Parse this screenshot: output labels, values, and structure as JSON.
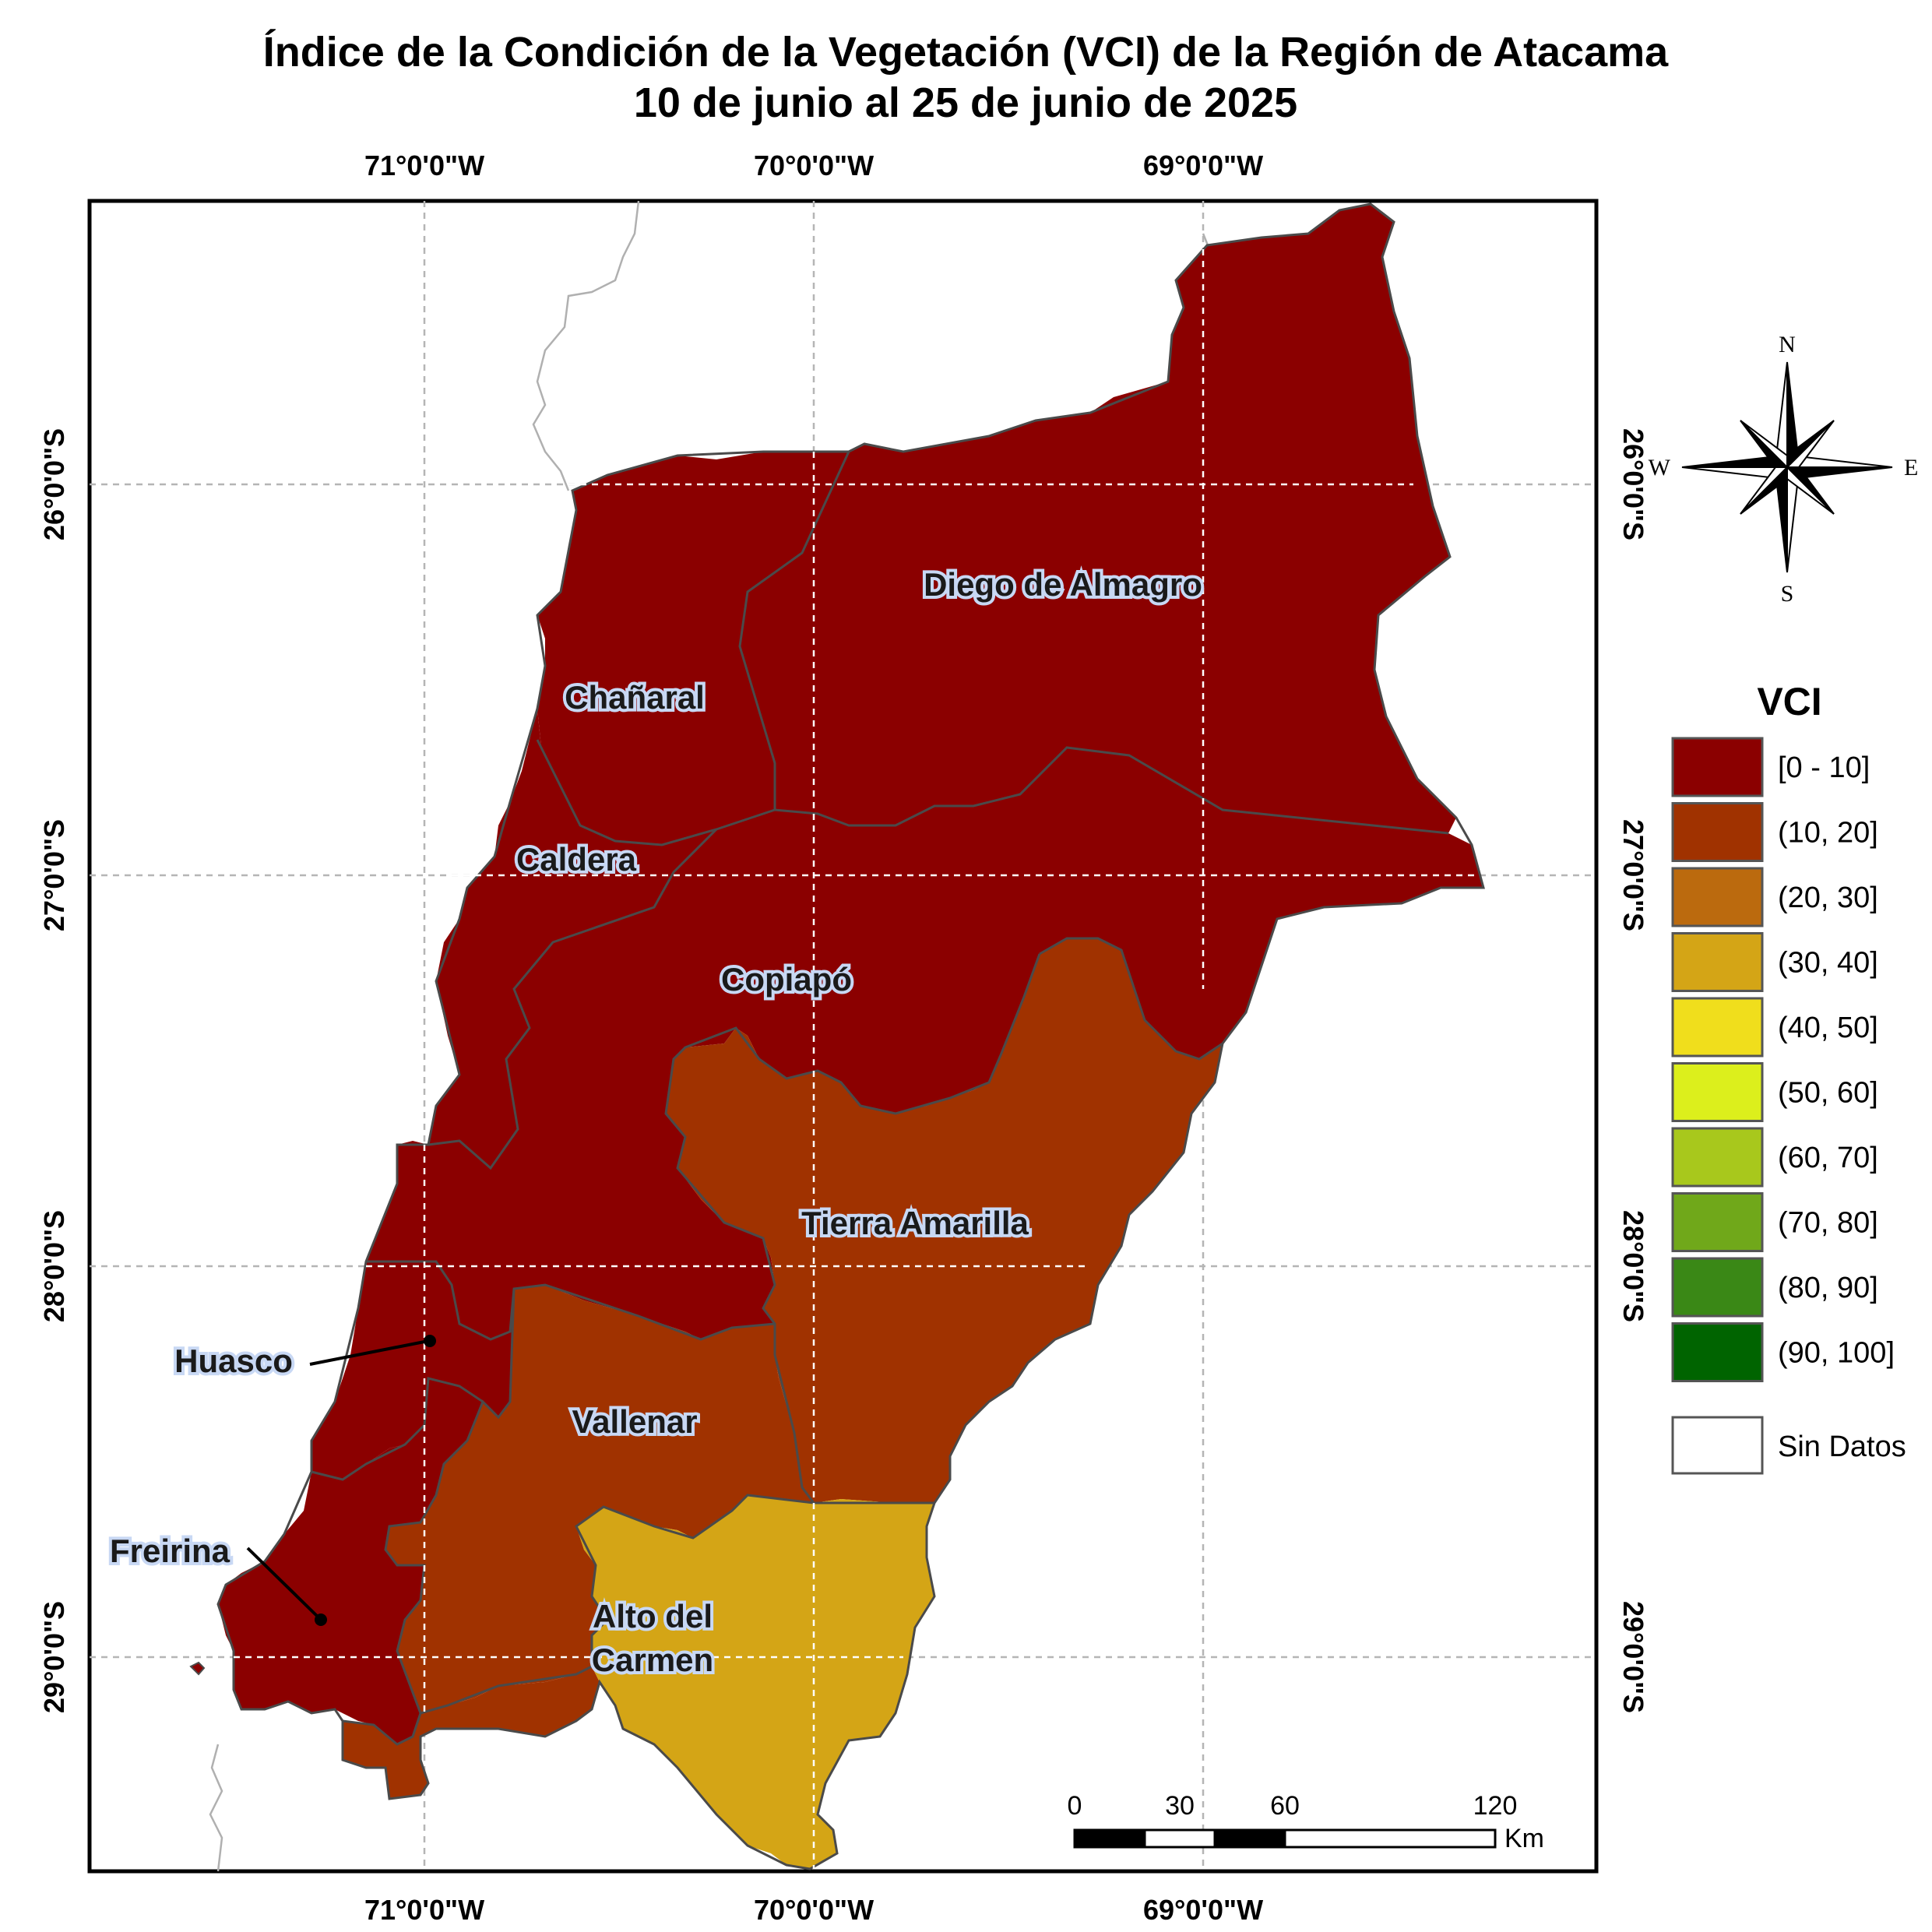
{
  "title": {
    "line1": "Índice de la Condición de la Vegetación (VCI) de la Región de Atacama",
    "line2": "10 de junio al 25 de junio de 2025"
  },
  "longitude_labels": [
    "71°0'0\"W",
    "70°0'0\"W",
    "69°0'0\"W"
  ],
  "latitude_labels": [
    "26°0'0\"S",
    "27°0'0\"S",
    "28°0'0\"S",
    "29°0'0\"S"
  ],
  "communes": [
    {
      "name": "Diego de Almagro",
      "vci_class": "[0 - 10]"
    },
    {
      "name": "Chañaral",
      "vci_class": "[0 - 10]"
    },
    {
      "name": "Caldera",
      "vci_class": "[0 - 10]"
    },
    {
      "name": "Copiapó",
      "vci_class": "[0 - 10]"
    },
    {
      "name": "Tierra Amarilla",
      "vci_class": "(10, 20]"
    },
    {
      "name": "Huasco",
      "vci_class": "[0 - 10]"
    },
    {
      "name": "Vallenar",
      "vci_class": "(10, 20]"
    },
    {
      "name": "Freirina",
      "vci_class": "[0 - 10]"
    },
    {
      "name": "Alto del Carmen",
      "vci_class": "(30, 40]"
    }
  ],
  "labels": {
    "alto_line1": "Alto del",
    "alto_line2": "Carmen"
  },
  "legend": {
    "title": "VCI",
    "items": [
      {
        "label": "[0 - 10]",
        "color": "#8b0000"
      },
      {
        "label": "(10, 20]",
        "color": "#a03200"
      },
      {
        "label": "(20, 30]",
        "color": "#bb6a0e"
      },
      {
        "label": "(30, 40]",
        "color": "#d4a516"
      },
      {
        "label": "(40, 50]",
        "color": "#f0de1c"
      },
      {
        "label": "(50, 60]",
        "color": "#dcef1c"
      },
      {
        "label": "(60, 70]",
        "color": "#a8c81c"
      },
      {
        "label": "(70, 80]",
        "color": "#70a81a"
      },
      {
        "label": "(80, 90]",
        "color": "#3a8816"
      },
      {
        "label": "(90, 100]",
        "color": "#006400"
      }
    ],
    "no_data": {
      "label": "Sin Datos",
      "color": "#ffffff"
    }
  },
  "compass": {
    "n": "N",
    "s": "S",
    "e": "E",
    "w": "W"
  },
  "scale_bar": {
    "ticks": [
      "0",
      "30",
      "60",
      "120"
    ],
    "unit": "Km"
  }
}
